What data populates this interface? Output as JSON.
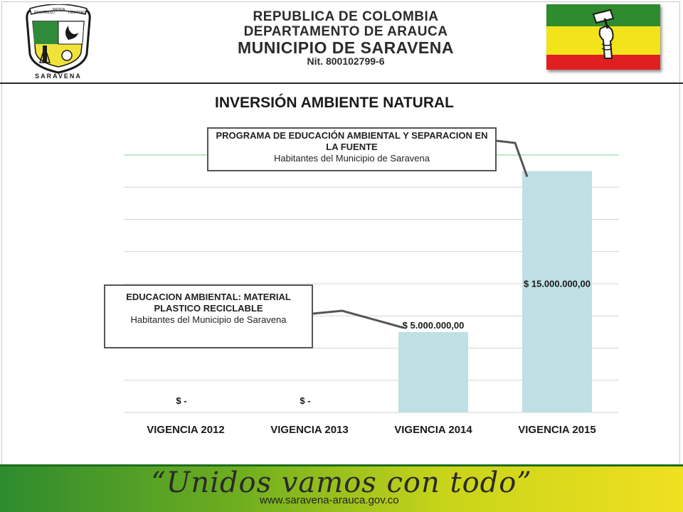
{
  "header": {
    "line1": "REPUBLICA DE COLOMBIA",
    "line2": "DEPARTAMENTO DE ARAUCA",
    "line3": "MUNICIPIO DE SARAVENA",
    "nit": "Nit. 800102799-6",
    "crest_banner": [
      "PROGRESO",
      "PATRIA",
      "LIBERTAD"
    ],
    "crest_name": "SARAVENA",
    "flag_colors": [
      "#2e8b2e",
      "#f2e31b",
      "#e02020"
    ]
  },
  "chart_data": {
    "type": "bar",
    "title": "INVERSIÓN  AMBIENTE NATURAL",
    "categories": [
      "VIGENCIA 2012",
      "VIGENCIA 2013",
      "VIGENCIA 2014",
      "VIGENCIA 2015"
    ],
    "values": [
      0,
      0,
      5000000,
      15000000
    ],
    "data_labels": [
      "$ -",
      "$ -",
      "$ 5.000.000,00",
      "$ 15.000.000,00"
    ],
    "ylim": [
      0,
      16000000
    ],
    "grid": true,
    "bar_color": "#bfe0e4",
    "annotations": [
      {
        "target": "VIGENCIA 2015",
        "title": "PROGRAMA DE EDUCACIÓN AMBIENTAL  Y SEPARACION EN LA FUENTE",
        "subtitle": "Habitantes del Municipio de Saravena"
      },
      {
        "target": "VIGENCIA 2014",
        "title": "EDUCACION AMBIENTAL: MATERIAL PLASTICO RECICLABLE",
        "subtitle": "Habitantes del Municipio de Saravena"
      }
    ]
  },
  "footer": {
    "slogan": "“Unidos vamos con todo”",
    "website": "www.saravena-arauca.gov.co"
  }
}
